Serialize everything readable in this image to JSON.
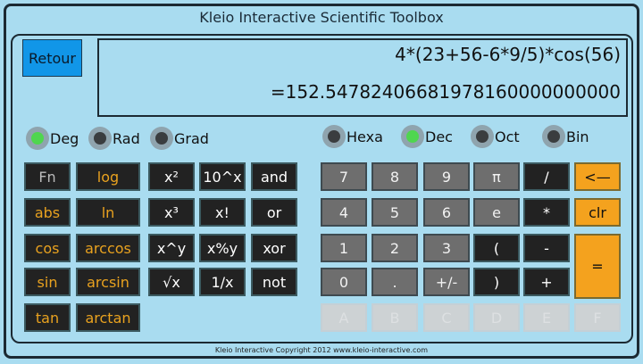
{
  "title": "Kleio Interactive Scientific Toolbox",
  "retour": "Retour",
  "display": {
    "expression": "4*(23+56-6*9/5)*cos(56)",
    "result": "=152.54782406681978160000000000"
  },
  "angle_modes": [
    {
      "label": "Deg",
      "selected": true
    },
    {
      "label": "Rad",
      "selected": false
    },
    {
      "label": "Grad",
      "selected": false
    }
  ],
  "base_modes": [
    {
      "label": "Hexa",
      "selected": false
    },
    {
      "label": "Dec",
      "selected": true
    },
    {
      "label": "Oct",
      "selected": false
    },
    {
      "label": "Bin",
      "selected": false
    }
  ],
  "func_keys": [
    "Fn",
    "log",
    "abs",
    "ln",
    "cos",
    "arccos",
    "sin",
    "arcsin",
    "tan",
    "arctan"
  ],
  "op_keys": [
    "x²",
    "10^x",
    "and",
    "x³",
    "x!",
    "or",
    "x^y",
    "x%y",
    "xor",
    "√x",
    "1/x",
    "not"
  ],
  "num_keys": [
    "7",
    "8",
    "9",
    "π",
    "/",
    "<—",
    "4",
    "5",
    "6",
    "e",
    "*",
    "clr",
    "1",
    "2",
    "3",
    "(",
    "-",
    "=",
    "0",
    ".",
    "+/-",
    ")",
    "+"
  ],
  "hex_keys": [
    "A",
    "B",
    "C",
    "D",
    "E",
    "F"
  ],
  "footer": "Kleio Interactive  Copyright 2012  www.kleio-interactive.com",
  "colors": {
    "background": "#a9dcf0",
    "accent_orange": "#f4a21e",
    "retour_blue": "#1196e8",
    "active_led": "#4fd64f"
  }
}
